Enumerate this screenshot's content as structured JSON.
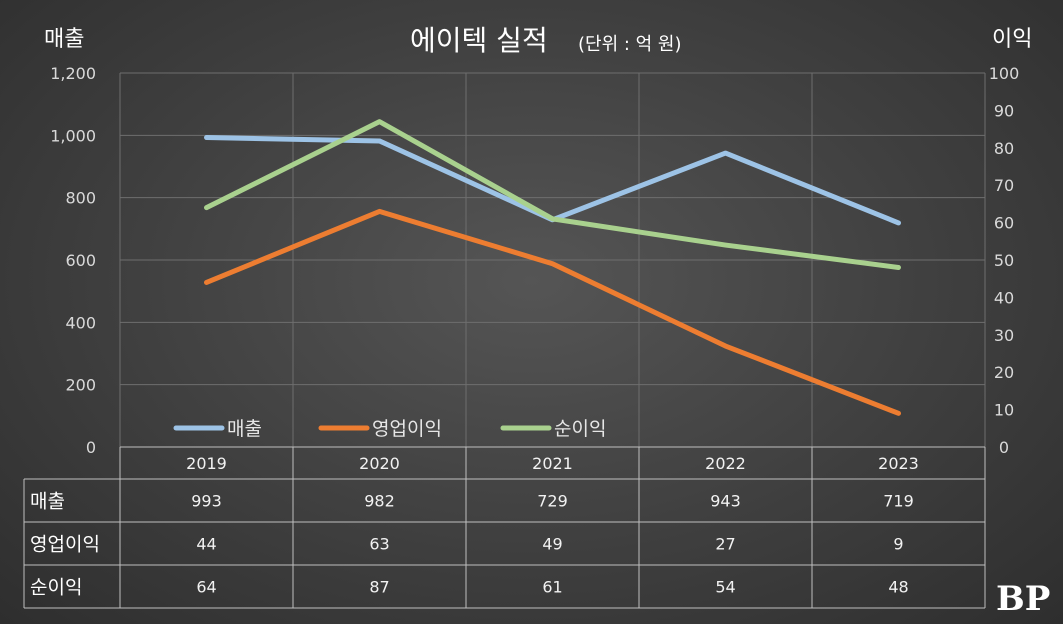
{
  "chart_data": {
    "type": "line",
    "title": "에이텍 실적",
    "subtitle": "(단위 : 억 원)",
    "ylabel_left": "매출",
    "ylabel_right": "이익",
    "categories": [
      "2019",
      "2020",
      "2021",
      "2022",
      "2023"
    ],
    "y_left": {
      "min": 0,
      "max": 1200,
      "ticks": [
        "0",
        "200",
        "400",
        "600",
        "800",
        "1,000",
        "1,200"
      ]
    },
    "y_right": {
      "min": 0,
      "max": 100,
      "ticks": [
        "0",
        "10",
        "20",
        "30",
        "40",
        "50",
        "60",
        "70",
        "80",
        "90",
        "100"
      ]
    },
    "grid": true,
    "legend_position": "bottom-left",
    "series": [
      {
        "name": "매출",
        "axis": "left",
        "color": "#9dc3e6",
        "values": [
          993,
          982,
          729,
          943,
          719
        ],
        "labels": [
          "993",
          "982",
          "729",
          "943",
          "719"
        ]
      },
      {
        "name": "영업이익",
        "axis": "right",
        "color": "#ed7d31",
        "values": [
          44,
          63,
          49,
          27,
          9
        ],
        "labels": [
          "44",
          "63",
          "49",
          "27",
          "9"
        ]
      },
      {
        "name": "순이익",
        "axis": "right",
        "color": "#a9d18e",
        "values": [
          64,
          87,
          61,
          54,
          48
        ],
        "labels": [
          "64",
          "87",
          "61",
          "54",
          "48"
        ]
      }
    ]
  },
  "logo": {
    "text": "BP"
  }
}
